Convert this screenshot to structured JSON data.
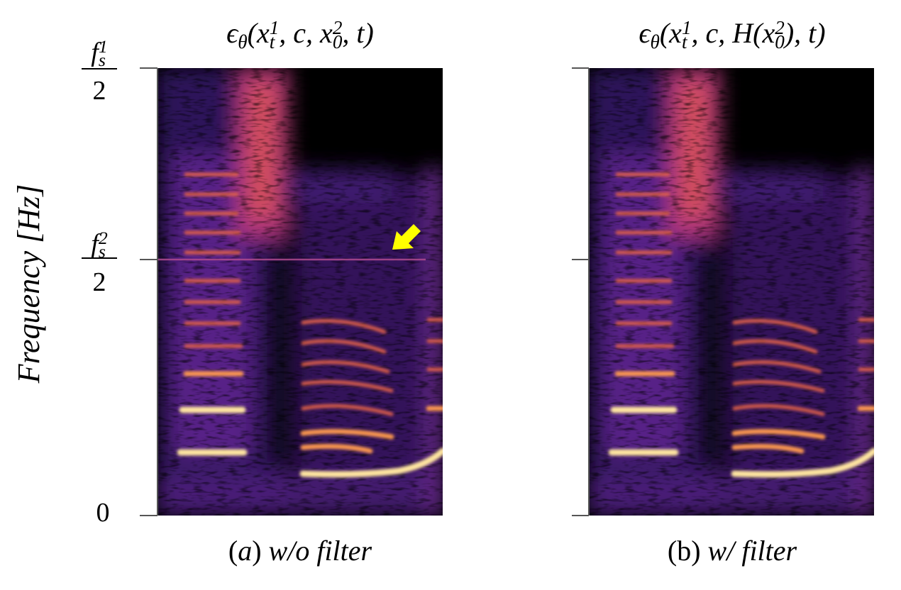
{
  "panels": [
    {
      "title": [
        {
          "text": "ϵ"
        },
        {
          "text": "θ",
          "sub": true
        },
        {
          "text": "(x"
        },
        {
          "text": "t",
          "sub": true
        },
        {
          "text": "1",
          "sup": true
        },
        {
          "text": ", c, x"
        },
        {
          "text": "0",
          "sub": true
        },
        {
          "text": "2",
          "sup": true
        },
        {
          "text": ", t)"
        }
      ],
      "caption": [
        {
          "text": "("
        },
        {
          "text": "a",
          "italic": true
        },
        {
          "text": ") "
        },
        {
          "text": "w/o filter",
          "italic": true
        }
      ]
    },
    {
      "title": [
        {
          "text": "ϵ"
        },
        {
          "text": "θ",
          "sub": true
        },
        {
          "text": "(x"
        },
        {
          "text": "t",
          "sub": true
        },
        {
          "text": "1",
          "sup": true
        },
        {
          "text": ", c, H(x"
        },
        {
          "text": "0",
          "sub": true
        },
        {
          "text": "2",
          "sup": true
        },
        {
          "text": "), t)"
        }
      ],
      "caption": [
        {
          "text": "(b) "
        },
        {
          "text": "w/ filter",
          "italic": true
        }
      ]
    }
  ],
  "y_axis": {
    "label": "Frequency [Hz]",
    "ticks": [
      {
        "numerator": [
          {
            "text": "f"
          },
          {
            "text": "s",
            "sub": true
          },
          {
            "text": "1",
            "sup": true
          }
        ],
        "denominator": "2"
      },
      {
        "numerator": [
          {
            "text": "f"
          },
          {
            "text": "s",
            "sub": true
          },
          {
            "text": "2",
            "sup": true
          }
        ],
        "denominator": "2"
      },
      {
        "label": "0"
      }
    ]
  }
}
